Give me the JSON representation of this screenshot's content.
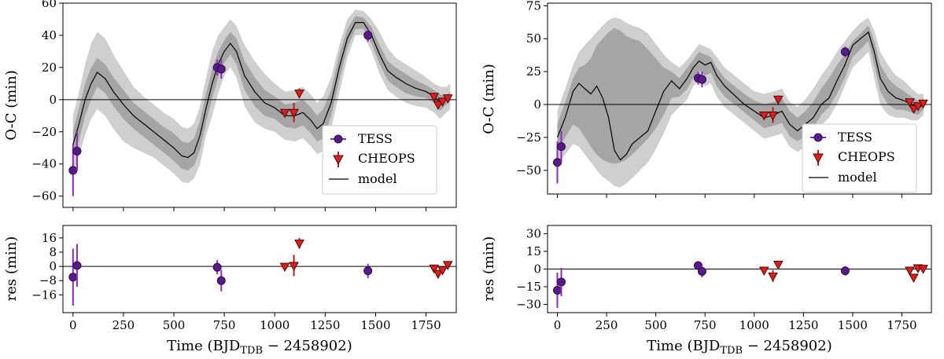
{
  "chart_data": [
    {
      "type": "scatter",
      "panel": "left-top",
      "ylabel": "O-C (min)",
      "xlim": [
        -50,
        1900
      ],
      "ylim": [
        -67,
        60
      ],
      "yticks": [
        -60,
        -40,
        -20,
        0,
        20,
        40,
        60
      ],
      "legend": [
        "TESS",
        "CHEOPS",
        "model"
      ],
      "legend_position": "lower-right",
      "tess": [
        {
          "x": 0,
          "y": -44,
          "err": 16
        },
        {
          "x": 20,
          "y": -32,
          "err": 12
        },
        {
          "x": 715,
          "y": 20,
          "err": 5
        },
        {
          "x": 735,
          "y": 19,
          "err": 6
        },
        {
          "x": 1462,
          "y": 40,
          "err": 4
        }
      ],
      "cheops": [
        {
          "x": 1050,
          "y": -8,
          "err": 2
        },
        {
          "x": 1095,
          "y": -8,
          "err": 6
        },
        {
          "x": 1122,
          "y": 4,
          "err": 3
        },
        {
          "x": 1790,
          "y": 2,
          "err": 2
        },
        {
          "x": 1810,
          "y": -3,
          "err": 2
        },
        {
          "x": 1832,
          "y": -1,
          "err": 2
        },
        {
          "x": 1858,
          "y": 1,
          "err": 2
        }
      ],
      "model": {
        "x": [
          0,
          30,
          60,
          90,
          120,
          160,
          200,
          250,
          300,
          350,
          400,
          450,
          500,
          540,
          570,
          600,
          630,
          660,
          690,
          720,
          750,
          780,
          810,
          850,
          900,
          950,
          1000,
          1050,
          1100,
          1140,
          1180,
          1210,
          1240,
          1280,
          1320,
          1360,
          1400,
          1440,
          1480,
          1520,
          1560,
          1600,
          1650,
          1700,
          1750,
          1790,
          1820,
          1850,
          1870
        ],
        "y": [
          -28,
          -15,
          0,
          10,
          17,
          13,
          5,
          -3,
          -10,
          -15,
          -20,
          -25,
          -30,
          -35,
          -36,
          -33,
          -22,
          -5,
          10,
          22,
          30,
          35,
          30,
          15,
          5,
          -2,
          -5,
          -10,
          -10,
          -8,
          -13,
          -18,
          -15,
          -2,
          20,
          38,
          48,
          48,
          40,
          28,
          18,
          14,
          10,
          7,
          5,
          2,
          -2,
          0,
          2
        ]
      },
      "band_inner": {
        "upper": [
          -20,
          -5,
          10,
          20,
          26,
          22,
          14,
          6,
          -2,
          -7,
          -12,
          -17,
          -21,
          -26,
          -27,
          -24,
          -13,
          4,
          19,
          30,
          37,
          42,
          38,
          24,
          14,
          6,
          2,
          -3,
          -2,
          0,
          -5,
          -10,
          -6,
          6,
          28,
          44,
          52,
          51,
          45,
          34,
          24,
          20,
          16,
          12,
          9,
          6,
          3,
          3,
          5
        ],
        "lower": [
          -36,
          -25,
          -10,
          0,
          8,
          4,
          -4,
          -12,
          -18,
          -23,
          -28,
          -33,
          -38,
          -43,
          -44,
          -41,
          -31,
          -14,
          1,
          14,
          23,
          28,
          22,
          6,
          -4,
          -10,
          -12,
          -17,
          -18,
          -16,
          -21,
          -26,
          -24,
          -10,
          12,
          32,
          44,
          44,
          35,
          22,
          12,
          8,
          4,
          2,
          1,
          -2,
          -7,
          -3,
          -1
        ]
      },
      "band_outer": {
        "upper": [
          -10,
          5,
          22,
          35,
          42,
          38,
          28,
          18,
          8,
          2,
          -3,
          -8,
          -12,
          -17,
          -18,
          -15,
          -4,
          14,
          30,
          40,
          45,
          50,
          46,
          34,
          24,
          16,
          10,
          5,
          6,
          8,
          3,
          -2,
          2,
          14,
          34,
          50,
          56,
          55,
          50,
          42,
          32,
          26,
          22,
          18,
          14,
          10,
          8,
          8,
          10
        ],
        "lower": [
          -46,
          -35,
          -22,
          -12,
          -6,
          -10,
          -18,
          -26,
          -30,
          -33,
          -36,
          -41,
          -46,
          -51,
          -52,
          -49,
          -40,
          -22,
          -10,
          4,
          15,
          20,
          14,
          -4,
          -14,
          -18,
          -20,
          -25,
          -26,
          -24,
          -29,
          -34,
          -32,
          -18,
          4,
          26,
          40,
          40,
          30,
          16,
          6,
          2,
          -2,
          -4,
          -5,
          -8,
          -12,
          -8,
          -6
        ]
      }
    },
    {
      "type": "scatter",
      "panel": "left-bottom",
      "xlabel": "Time (BJD",
      "xlabel_sub": "TDB",
      "xlabel_tail": " − 2458902)",
      "ylabel": "res (min)",
      "xlim": [
        -50,
        1900
      ],
      "ylim": [
        -26,
        23
      ],
      "yticks": [
        -16,
        -8,
        0,
        8,
        16
      ],
      "ytick_labels": [
        "−16",
        "−8",
        "0",
        "8",
        "16"
      ],
      "xticks": [
        0,
        250,
        500,
        750,
        1000,
        1250,
        1500,
        1750
      ],
      "tess": [
        {
          "x": 0,
          "y": -6,
          "err": 16
        },
        {
          "x": 20,
          "y": 0.5,
          "err": 12
        },
        {
          "x": 715,
          "y": -0.5,
          "err": 4
        },
        {
          "x": 735,
          "y": -8,
          "err": 6
        },
        {
          "x": 1462,
          "y": -2.5,
          "err": 4
        }
      ],
      "cheops": [
        {
          "x": 1050,
          "y": 0,
          "err": 1.5
        },
        {
          "x": 1095,
          "y": 0.5,
          "err": 6
        },
        {
          "x": 1122,
          "y": 13,
          "err": 3
        },
        {
          "x": 1790,
          "y": -1,
          "err": 2
        },
        {
          "x": 1810,
          "y": -4,
          "err": 2
        },
        {
          "x": 1832,
          "y": -2,
          "err": 2
        },
        {
          "x": 1858,
          "y": 1,
          "err": 2
        }
      ]
    },
    {
      "type": "scatter",
      "panel": "right-top",
      "ylabel": "O-C (min)",
      "xlim": [
        -50,
        1900
      ],
      "ylim": [
        -68,
        77
      ],
      "yticks": [
        -50,
        -25,
        0,
        25,
        50,
        75
      ],
      "legend": [
        "TESS",
        "CHEOPS",
        "model"
      ],
      "legend_position": "lower-right",
      "tess": [
        {
          "x": 0,
          "y": -44,
          "err": 16
        },
        {
          "x": 20,
          "y": -32,
          "err": 12
        },
        {
          "x": 715,
          "y": 20,
          "err": 5
        },
        {
          "x": 735,
          "y": 19,
          "err": 6
        },
        {
          "x": 1462,
          "y": 40,
          "err": 4
        }
      ],
      "cheops": [
        {
          "x": 1050,
          "y": -8,
          "err": 2
        },
        {
          "x": 1095,
          "y": -8,
          "err": 6
        },
        {
          "x": 1122,
          "y": 4,
          "err": 3
        },
        {
          "x": 1790,
          "y": 2,
          "err": 2
        },
        {
          "x": 1810,
          "y": -3,
          "err": 2
        },
        {
          "x": 1832,
          "y": -1,
          "err": 2
        },
        {
          "x": 1858,
          "y": 1,
          "err": 2
        }
      ],
      "model": {
        "x": [
          0,
          40,
          80,
          110,
          140,
          170,
          200,
          230,
          260,
          290,
          320,
          350,
          380,
          420,
          460,
          500,
          540,
          580,
          620,
          660,
          690,
          720,
          750,
          780,
          810,
          850,
          900,
          950,
          1000,
          1050,
          1100,
          1140,
          1180,
          1220,
          1260,
          1300,
          1340,
          1380,
          1420,
          1460,
          1500,
          1540,
          1580,
          1610,
          1640,
          1680,
          1720,
          1760,
          1800,
          1830,
          1860
        ],
        "y": [
          -25,
          -10,
          10,
          16,
          12,
          8,
          14,
          5,
          -10,
          -35,
          -42,
          -38,
          -30,
          -25,
          -20,
          -5,
          10,
          18,
          12,
          20,
          28,
          33,
          30,
          32,
          22,
          14,
          7,
          0,
          -5,
          -10,
          -8,
          -5,
          -15,
          -20,
          -15,
          -10,
          0,
          5,
          18,
          30,
          45,
          50,
          55,
          40,
          20,
          10,
          5,
          3,
          0,
          -3,
          0
        ]
      },
      "band_inner": {
        "upper": [
          -15,
          2,
          20,
          28,
          30,
          35,
          45,
          50,
          55,
          58,
          56,
          52,
          50,
          48,
          42,
          35,
          28,
          25,
          20,
          28,
          34,
          40,
          38,
          36,
          28,
          20,
          14,
          8,
          3,
          0,
          2,
          5,
          -5,
          -10,
          -5,
          2,
          12,
          20,
          30,
          38,
          48,
          54,
          60,
          48,
          30,
          20,
          14,
          10,
          6,
          3,
          4
        ],
        "lower": [
          -35,
          -25,
          -15,
          -18,
          -25,
          -32,
          -38,
          -42,
          -44,
          -45,
          -44,
          -42,
          -38,
          -32,
          -26,
          -18,
          -8,
          5,
          6,
          12,
          20,
          26,
          22,
          24,
          14,
          6,
          0,
          -6,
          -12,
          -18,
          -16,
          -14,
          -24,
          -28,
          -24,
          -18,
          -8,
          -2,
          8,
          20,
          36,
          42,
          48,
          30,
          10,
          0,
          -4,
          -4,
          -6,
          -8,
          -4
        ]
      },
      "band_outer": {
        "upper": [
          -5,
          12,
          30,
          40,
          45,
          50,
          55,
          60,
          64,
          66,
          65,
          62,
          60,
          58,
          54,
          46,
          38,
          32,
          28,
          34,
          40,
          46,
          44,
          42,
          36,
          28,
          22,
          16,
          10,
          8,
          10,
          12,
          2,
          -2,
          4,
          12,
          22,
          30,
          40,
          48,
          56,
          62,
          66,
          56,
          40,
          30,
          22,
          18,
          12,
          8,
          8
        ],
        "lower": [
          -45,
          -38,
          -30,
          -32,
          -38,
          -44,
          -50,
          -55,
          -58,
          -62,
          -63,
          -60,
          -56,
          -50,
          -44,
          -34,
          -22,
          -8,
          -2,
          4,
          14,
          18,
          14,
          16,
          6,
          -2,
          -8,
          -14,
          -20,
          -26,
          -24,
          -22,
          -32,
          -36,
          -32,
          -26,
          -16,
          -10,
          0,
          14,
          28,
          34,
          40,
          20,
          0,
          -8,
          -10,
          -10,
          -12,
          -12,
          -8
        ]
      }
    },
    {
      "type": "scatter",
      "panel": "right-bottom",
      "xlabel": "Time (BJD",
      "xlabel_sub": "TDB",
      "xlabel_tail": " − 2458902)",
      "ylabel": "res (min)",
      "xlim": [
        -50,
        1900
      ],
      "ylim": [
        -37,
        37
      ],
      "yticks": [
        -30,
        -15,
        0,
        15,
        30
      ],
      "ytick_labels": [
        "−30",
        "−15",
        "0",
        "15",
        "30"
      ],
      "xticks": [
        0,
        250,
        500,
        750,
        1000,
        1250,
        1500,
        1750
      ],
      "tess": [
        {
          "x": 0,
          "y": -18,
          "err": 15
        },
        {
          "x": 20,
          "y": -11,
          "err": 12
        },
        {
          "x": 715,
          "y": 3,
          "err": 3
        },
        {
          "x": 735,
          "y": -2,
          "err": 5
        },
        {
          "x": 1462,
          "y": -1.5,
          "err": 4
        }
      ],
      "cheops": [
        {
          "x": 1050,
          "y": -1,
          "err": 1.5
        },
        {
          "x": 1095,
          "y": -6,
          "err": 5
        },
        {
          "x": 1122,
          "y": 4,
          "err": 3
        },
        {
          "x": 1790,
          "y": -1,
          "err": 2
        },
        {
          "x": 1810,
          "y": -7,
          "err": 2
        },
        {
          "x": 1832,
          "y": 1,
          "err": 2
        },
        {
          "x": 1858,
          "y": 0.5,
          "err": 2
        }
      ]
    }
  ],
  "colors": {
    "tess_marker": "#5b1a8c",
    "tess_err": "#8a2db5",
    "cheops_marker": "#d8211f",
    "cheops_err": "#c0181b",
    "band_outer": "#cfcfcf",
    "band_inner": "#a5a5a5",
    "model_line": "#000000"
  }
}
